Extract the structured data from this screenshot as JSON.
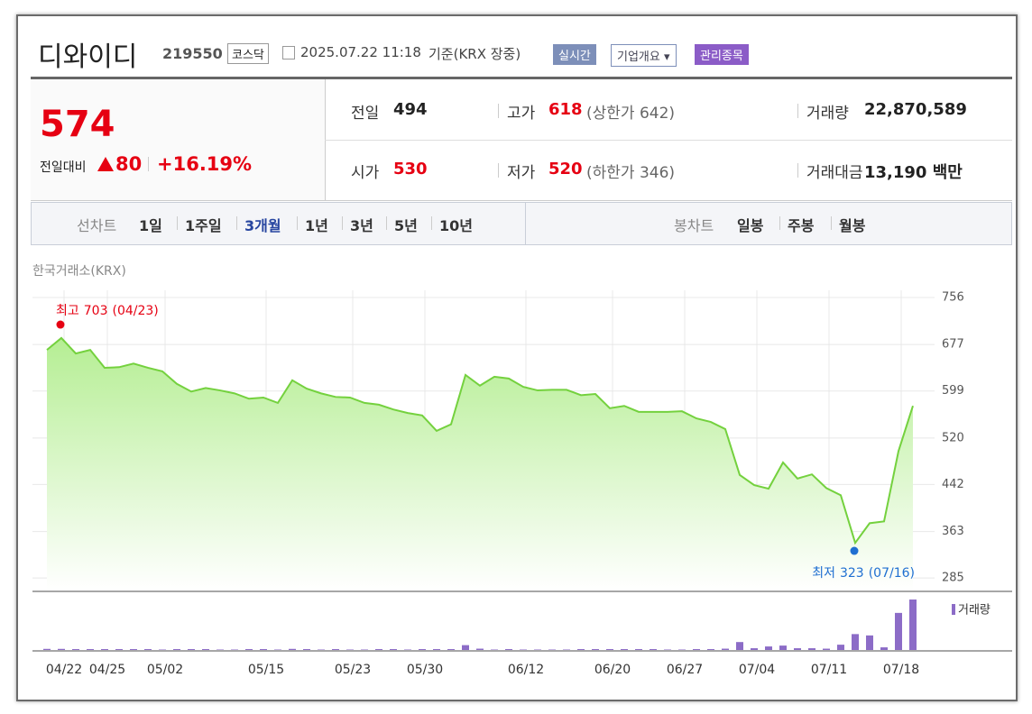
{
  "header": {
    "name": "디와이디",
    "code": "219550",
    "market": "코스닥",
    "datetime": "2025.07.22 11:18",
    "basis": "기준(KRX 장중)",
    "buttons": [
      "실시간",
      "기업개요",
      "관리종목"
    ]
  },
  "summary": {
    "price": 574,
    "change_label": "전일대비",
    "change": 80,
    "change_pct": "+16.19%",
    "stats": [
      {
        "label": "전일",
        "value": 494
      },
      {
        "label": "고가",
        "value": 618,
        "note": "(상한가 642)"
      },
      {
        "label": "거래량",
        "value": "22,870,589"
      },
      {
        "label": "시가",
        "value": 530
      },
      {
        "label": "저가",
        "value": 520,
        "note": "(하한가 346)"
      },
      {
        "label": "거래대금",
        "value": "13,190 백만"
      }
    ]
  },
  "tabs": {
    "line": {
      "label": "선차트",
      "items": [
        "1일",
        "1주일",
        "3개월",
        "1년",
        "3년",
        "5년",
        "10년"
      ],
      "active": 2
    },
    "candle": {
      "label": "봉차트",
      "items": [
        "일봉",
        "주봉",
        "월봉"
      ]
    }
  },
  "source": "한국거래소(KRX)",
  "chart_data": {
    "type": "area",
    "categories": [
      "04/22",
      null,
      null,
      "04/25",
      null,
      null,
      null,
      "05/02",
      null,
      null,
      null,
      null,
      null,
      null,
      "05/15",
      null,
      null,
      null,
      null,
      null,
      "05/23",
      null,
      null,
      null,
      null,
      "05/30",
      null,
      null,
      null,
      null,
      null,
      null,
      "06/12",
      null,
      null,
      null,
      null,
      null,
      "06/20",
      null,
      null,
      null,
      null,
      "06/27",
      null,
      null,
      null,
      null,
      "07/04",
      null,
      null,
      null,
      null,
      "07/11",
      null,
      null,
      null,
      null,
      "07/18",
      null,
      null
    ],
    "values": [
      668,
      688,
      662,
      668,
      638,
      639,
      645,
      638,
      632,
      611,
      598,
      604,
      600,
      595,
      586,
      588,
      579,
      617,
      603,
      595,
      589,
      588,
      579,
      576,
      568,
      562,
      558,
      532,
      543,
      626,
      608,
      623,
      620,
      606,
      600,
      601,
      601,
      592,
      594,
      570,
      574,
      564,
      564,
      564,
      565,
      553,
      547,
      535,
      458,
      441,
      435,
      479,
      452,
      459,
      436,
      424,
      344,
      377,
      380,
      498,
      574
    ],
    "color": "#74d13e",
    "ylim": [
      264,
      756
    ],
    "yticks": [
      756,
      677,
      599,
      520,
      442,
      363,
      285
    ],
    "grid": true,
    "annotations": [
      {
        "label": "최고",
        "value": 703,
        "date": "(04/23)",
        "color": "#e60012"
      },
      {
        "label": "최저",
        "value": 323,
        "date": "(07/16)",
        "color": "#1f6fd1"
      }
    ],
    "volume": {
      "name": "거래량",
      "color": "#8c6cc7",
      "values": [
        500000,
        500000,
        400000,
        400000,
        400000,
        400000,
        400000,
        400000,
        200000,
        400000,
        400000,
        400000,
        200000,
        200000,
        400000,
        400000,
        200000,
        500000,
        400000,
        200000,
        400000,
        200000,
        200000,
        400000,
        400000,
        200000,
        400000,
        400000,
        400000,
        2200000,
        600000,
        200000,
        400000,
        200000,
        200000,
        200000,
        200000,
        400000,
        400000,
        400000,
        400000,
        400000,
        400000,
        200000,
        200000,
        400000,
        400000,
        600000,
        3600000,
        800000,
        1600000,
        2000000,
        800000,
        800000,
        600000,
        2400000,
        7200000,
        6600000,
        1200000,
        16800000,
        22870589
      ]
    }
  }
}
